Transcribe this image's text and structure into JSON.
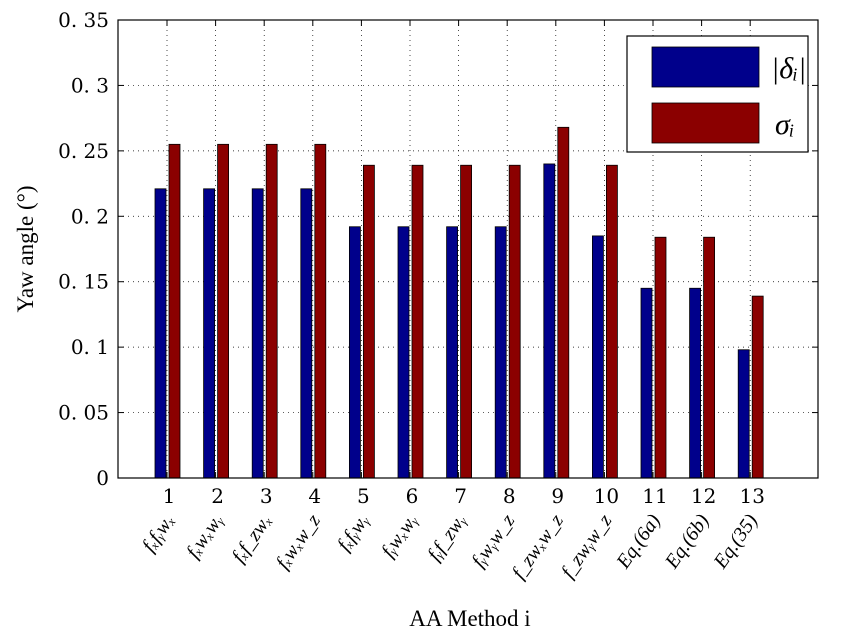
{
  "chart_data": {
    "type": "bar",
    "xlabel": "AA Method i",
    "ylabel": "Yaw angle (°)",
    "ylim": [
      0,
      0.35
    ],
    "yticks": [
      "0",
      "0. 05",
      "0. 1",
      "0. 15",
      "0. 2",
      "0. 25",
      "0. 3",
      "0. 35"
    ],
    "grid": true,
    "legend_position": "top-right",
    "categories": [
      "1",
      "2",
      "3",
      "4",
      "5",
      "6",
      "7",
      "8",
      "9",
      "10",
      "11",
      "12",
      "13"
    ],
    "method_labels": [
      "fₓfᵧwₓ",
      "fₓwₓwᵧ",
      "fₓf_zwₓ",
      "fₓwₓw_z",
      "fₓfᵧwᵧ",
      "fᵧwₓwᵧ",
      "fᵧf_zwᵧ",
      "fᵧwᵧw_z",
      "f_zwₓw_z",
      "f_zwᵧw_z",
      "Eq.(6a)",
      "Eq.(6b)",
      "Eq.(35)"
    ],
    "series": [
      {
        "name": "|δᵢ|",
        "color": "#00008b",
        "values": [
          0.221,
          0.221,
          0.221,
          0.221,
          0.192,
          0.192,
          0.192,
          0.192,
          0.24,
          0.185,
          0.145,
          0.145,
          0.098
        ]
      },
      {
        "name": "σᵢ",
        "color": "#8b0000",
        "values": [
          0.255,
          0.255,
          0.255,
          0.255,
          0.239,
          0.239,
          0.239,
          0.239,
          0.268,
          0.239,
          0.184,
          0.184,
          0.139
        ]
      }
    ]
  }
}
